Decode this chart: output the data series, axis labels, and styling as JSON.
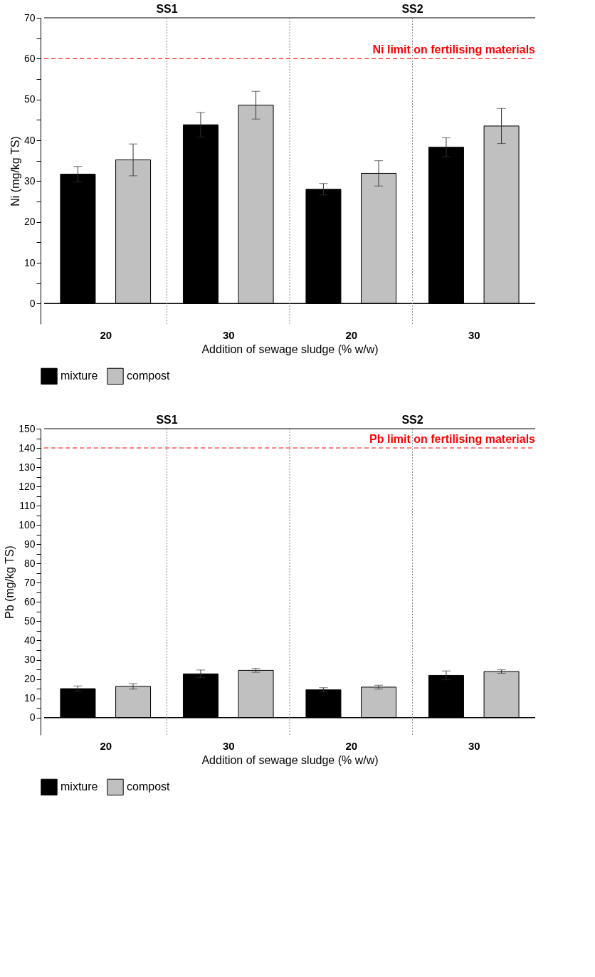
{
  "chart_data": [
    {
      "type": "bar",
      "xlabel": "Addition of sewage sludge (% w/w)",
      "ylabel": "Ni (mg/kg TS)",
      "categories": [
        "20",
        "30",
        "20",
        "30"
      ],
      "series": [
        {
          "name": "mixture",
          "color": "#000000",
          "values": [
            31.7,
            43.8,
            28.0,
            38.3
          ],
          "errors": [
            1.9,
            3.0,
            1.4,
            2.3
          ]
        },
        {
          "name": "compost",
          "color": "#c0c0c0",
          "values": [
            35.2,
            48.6,
            31.9,
            43.5
          ],
          "errors": [
            3.9,
            3.4,
            3.1,
            4.3
          ]
        }
      ],
      "ylim": [
        -5,
        70
      ],
      "yticks": [
        0,
        {
          "value": 5,
          "label": null
        },
        10,
        {
          "value": 15,
          "label": null
        },
        20,
        {
          "value": 25,
          "label": null
        },
        30,
        {
          "value": 35,
          "label": null
        },
        40,
        {
          "value": 45,
          "label": null
        },
        50,
        {
          "value": 55,
          "label": null
        },
        60,
        {
          "value": 65,
          "label": null
        },
        70
      ],
      "ref_lines": [
        {
          "axis": "y",
          "value": 60,
          "label": "Ni limit on fertilising materials",
          "color": "#ff0000",
          "line_style": "dashed"
        }
      ],
      "annotations": [
        "SS1",
        "SS2"
      ],
      "legend": "bottom"
    },
    {
      "type": "bar",
      "xlabel": "Addition of sewage sludge (% w/w)",
      "ylabel": "Pb (mg/kg TS)",
      "categories": [
        "20",
        "30",
        "20",
        "30"
      ],
      "series": [
        {
          "name": "mixture",
          "color": "#000000",
          "values": [
            15.0,
            22.7,
            14.4,
            21.9
          ],
          "errors": [
            1.4,
            2.0,
            1.1,
            2.3
          ]
        },
        {
          "name": "compost",
          "color": "#c0c0c0",
          "values": [
            16.2,
            24.5,
            15.8,
            23.9
          ],
          "errors": [
            1.4,
            1.0,
            1.0,
            0.9
          ]
        }
      ],
      "ylim": [
        -9,
        150
      ],
      "yticks": [
        0,
        {
          "value": 5,
          "label": null
        },
        10,
        {
          "value": 15,
          "label": null
        },
        20,
        {
          "value": 25,
          "label": null
        },
        30,
        {
          "value": 35,
          "label": null
        },
        40,
        {
          "value": 45,
          "label": null
        },
        50,
        {
          "value": 55,
          "label": null
        },
        60,
        {
          "value": 65,
          "label": null
        },
        70,
        {
          "value": 75,
          "label": null
        },
        80,
        {
          "value": 85,
          "label": null
        },
        90,
        {
          "value": 95,
          "label": null
        },
        100,
        {
          "value": 105,
          "label": null
        },
        110,
        {
          "value": 115,
          "label": null
        },
        120,
        {
          "value": 125,
          "label": null
        },
        130,
        {
          "value": 135,
          "label": null
        },
        140,
        {
          "value": 145,
          "label": null
        },
        150
      ],
      "ref_lines": [
        {
          "axis": "y",
          "value": 140,
          "label": "Pb limit on fertilising materials",
          "color": "#ff0000",
          "line_style": "dashed"
        }
      ],
      "annotations": [
        "SS1",
        "SS2"
      ],
      "legend": "bottom"
    }
  ]
}
